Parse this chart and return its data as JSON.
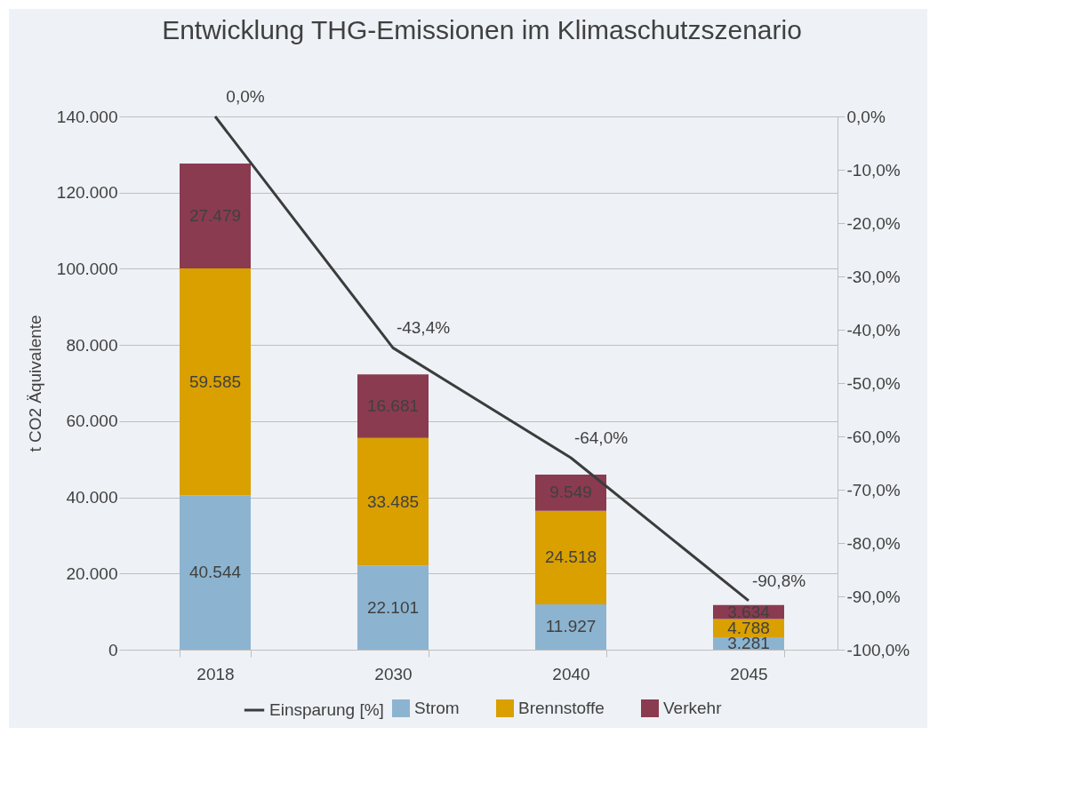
{
  "chart_data": {
    "type": "bar",
    "title": "Entwicklung THG-Emissionen im Klimaschutzszenario",
    "ylabel": "t CO2 Äquivalente",
    "categories": [
      "2018",
      "2030",
      "2040",
      "2045"
    ],
    "stacked": true,
    "series": [
      {
        "name": "Strom",
        "color": "#8cb4d0",
        "values": [
          40544,
          22101,
          11927,
          3281
        ],
        "value_labels": [
          "40.544",
          "22.101",
          "11.927",
          "3.281"
        ]
      },
      {
        "name": "Brennstoffe",
        "color": "#d9a000",
        "values": [
          59585,
          33485,
          24518,
          4788
        ],
        "value_labels": [
          "59.585",
          "33.485",
          "24.518",
          "4.788"
        ]
      },
      {
        "name": "Verkehr",
        "color": "#8a3b50",
        "values": [
          27479,
          16681,
          9549,
          3634
        ],
        "value_labels": [
          "27.479",
          "16.681",
          "9.549",
          "3.634"
        ]
      },
      {
        "name": "Einsparung [%]",
        "type": "line",
        "axis": "y2",
        "color": "#3c3c3c",
        "values": [
          0,
          -43.4,
          -64.0,
          -90.8
        ],
        "value_labels": [
          "0,0%",
          "-43,4%",
          "-64,0%",
          "-90,8%"
        ]
      }
    ],
    "ylim": [
      0,
      140000
    ],
    "yticks": [
      {
        "value": 0,
        "label": "0"
      },
      {
        "value": 20000,
        "label": "20.000"
      },
      {
        "value": 40000,
        "label": "40.000"
      },
      {
        "value": 60000,
        "label": "60.000"
      },
      {
        "value": 80000,
        "label": "80.000"
      },
      {
        "value": 100000,
        "label": "100.000"
      },
      {
        "value": 120000,
        "label": "120.000"
      },
      {
        "value": 140000,
        "label": "140.000"
      }
    ],
    "y2lim": [
      -100,
      0
    ],
    "y2ticks": [
      {
        "value": 0,
        "label": "0,0%"
      },
      {
        "value": -10,
        "label": "-10,0%"
      },
      {
        "value": -20,
        "label": "-20,0%"
      },
      {
        "value": -30,
        "label": "-30,0%"
      },
      {
        "value": -40,
        "label": "-40,0%"
      },
      {
        "value": -50,
        "label": "-50,0%"
      },
      {
        "value": -60,
        "label": "-60,0%"
      },
      {
        "value": -70,
        "label": "-70,0%"
      },
      {
        "value": -80,
        "label": "-80,0%"
      },
      {
        "value": -90,
        "label": "-90,0%"
      },
      {
        "value": -100,
        "label": "-100,0%"
      }
    ],
    "grid": "y",
    "legend": "bottom"
  }
}
